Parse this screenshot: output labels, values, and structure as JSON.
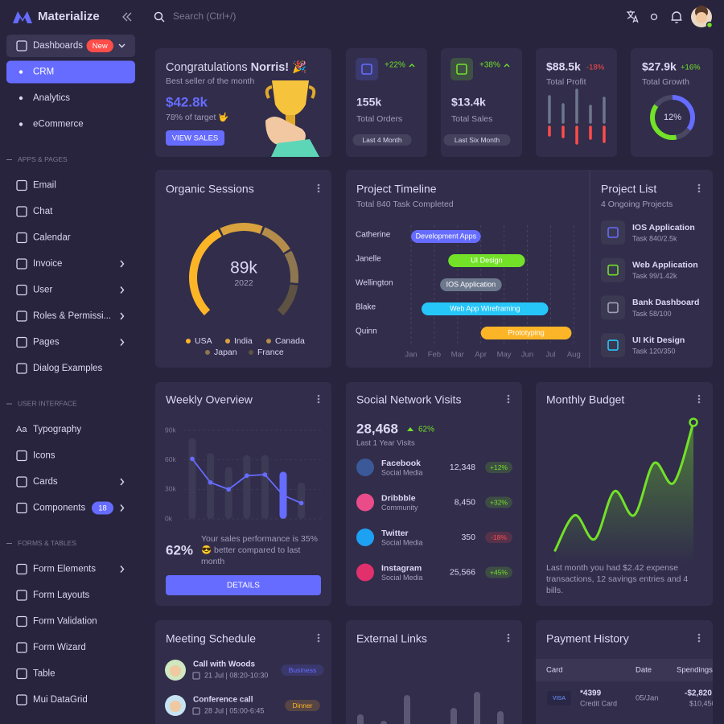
{
  "sidebar": {
    "brand": "Materialize",
    "menu": [
      {
        "label": "Dashboards",
        "badge": "New",
        "badge_color": "#ff4d49",
        "arrow": true,
        "expanded": true
      },
      {
        "label": "CRM",
        "level": 2,
        "active": true
      },
      {
        "label": "Analytics",
        "level": 2
      },
      {
        "label": "eCommerce",
        "level": 2
      },
      {
        "section": "APPS & PAGES"
      },
      {
        "label": "Email"
      },
      {
        "label": "Chat"
      },
      {
        "label": "Calendar"
      },
      {
        "label": "Invoice",
        "arrow": true
      },
      {
        "label": "User",
        "arrow": true
      },
      {
        "label": "Roles & Permissi...",
        "arrow": true
      },
      {
        "label": "Pages",
        "arrow": true
      },
      {
        "label": "Dialog Examples"
      },
      {
        "section": "USER INTERFACE"
      },
      {
        "label": "Typography",
        "icon_text": "Aa"
      },
      {
        "label": "Icons"
      },
      {
        "label": "Cards",
        "arrow": true
      },
      {
        "label": "Components",
        "badge": 18,
        "badge_color": "#666cff",
        "arrow": true
      },
      {
        "section": "FORMS & TABLES"
      },
      {
        "label": "Form Elements",
        "arrow": true
      },
      {
        "label": "Form Layouts"
      },
      {
        "label": "Form Validation"
      },
      {
        "label": "Form Wizard"
      },
      {
        "label": "Table"
      },
      {
        "label": "Mui DataGrid"
      }
    ]
  },
  "topbar": {
    "search_placeholder": "Search (Ctrl+/)"
  },
  "congrats": {
    "title": "Congratulations ",
    "name": "Norris! 🎉",
    "subtitle": "Best seller of the month",
    "amount": "$42.8k",
    "target": "78% of target 🤟",
    "button": "VIEW SALES"
  },
  "stats": [
    {
      "change": "+22%",
      "value": "155k",
      "label": "Total Orders",
      "period": "Last 4 Month",
      "color": "#666cff"
    },
    {
      "change": "+38%",
      "value": "$13.4k",
      "label": "Total Sales",
      "period": "Last Six Month",
      "color": "#72e128"
    }
  ],
  "total_profit": {
    "value": "$88.5k",
    "change": "-18%",
    "label": "Total Profit",
    "chart": {
      "up": [
        32,
        22,
        40,
        20,
        30
      ],
      "down": [
        10,
        12,
        20,
        14,
        18
      ],
      "colors": [
        "#6d788d",
        "#ff4d49"
      ]
    }
  },
  "total_growth": {
    "value": "$27.9k",
    "change": "+16%",
    "label": "Total Growth",
    "chart": {
      "values": [
        35,
        12,
        38,
        15
      ],
      "colors": [
        "#666cff",
        "#4a4763",
        "#72e128",
        "#4a4763"
      ],
      "center": "12%"
    }
  },
  "organic_sessions": {
    "title": "Organic Sessions",
    "center": "89k",
    "year": "2022",
    "series": [
      {
        "name": "USA",
        "value": 40,
        "color": "#fdb528"
      },
      {
        "name": "India",
        "value": 18,
        "color": "#d9a23e"
      },
      {
        "name": "Canada",
        "value": 14,
        "color": "#b58d4b"
      },
      {
        "name": "Japan",
        "value": 14,
        "color": "#8e7650"
      },
      {
        "name": "France",
        "value": 14,
        "color": "#5e5343"
      }
    ]
  },
  "project_timeline": {
    "title": "Project Timeline",
    "subtitle": "Total 840 Task Completed",
    "months": [
      "Jan",
      "Feb",
      "Mar",
      "Apr",
      "May",
      "Jun",
      "Jul",
      "Aug"
    ],
    "tasks": [
      {
        "person": "Catherine",
        "label": "Development Apps",
        "start": 0,
        "end": 3,
        "color": "#666cff"
      },
      {
        "person": "Janelle",
        "label": "UI Design",
        "start": 1.6,
        "end": 4.9,
        "color": "#72e128"
      },
      {
        "person": "Wellington",
        "label": "IOS Application",
        "start": 1.25,
        "end": 3.9,
        "color": "#6d788d"
      },
      {
        "person": "Blake",
        "label": "Web App Wireframing",
        "start": 0.45,
        "end": 5.9,
        "color": "#26c6f9"
      },
      {
        "person": "Quinn",
        "label": "Prototyping",
        "start": 3,
        "end": 6.9,
        "color": "#fdb528"
      }
    ]
  },
  "project_list": {
    "title": "Project List",
    "subtitle": "4 Ongoing Projects",
    "items": [
      {
        "name": "IOS Application",
        "task": "Task 840/2.5k",
        "color": "#666cff"
      },
      {
        "name": "Web Application",
        "task": "Task 99/1.42k",
        "color": "#72e128"
      },
      {
        "name": "Bank Dashboard",
        "task": "Task 58/100",
        "color": "#a29eb9"
      },
      {
        "name": "UI Kit Design",
        "task": "Task 120/350",
        "color": "#26c6f9"
      }
    ]
  },
  "weekly_overview": {
    "title": "Weekly Overview",
    "ylim": [
      0,
      90000
    ],
    "yticks": [
      {
        "value": 0,
        "label": "0k"
      },
      {
        "value": 30000,
        "label": "30k"
      },
      {
        "value": 60000,
        "label": "60k"
      },
      {
        "value": 90000,
        "label": "90k"
      }
    ],
    "bars": [
      82000,
      67000,
      53000,
      65000,
      65000,
      48000,
      37000
    ],
    "highlight": 5,
    "line": [
      61000,
      37000,
      30000,
      44000,
      45000,
      24000,
      16000
    ],
    "bar_color": "#3d3a55",
    "color": "#666cff",
    "percent": "62%",
    "text": "Your sales performance is 35% 😎 better compared to last month",
    "button": "DETAILS"
  },
  "social": {
    "title": "Social Network Visits",
    "total": "28,468",
    "change": "62%",
    "subtitle": "Last 1 Year Visits",
    "items": [
      {
        "name": "Facebook",
        "sub": "Social Media",
        "value": "12,348",
        "change": "+12%"
      },
      {
        "name": "Dribbble",
        "sub": "Community",
        "value": "8,450",
        "change": "+32%"
      },
      {
        "name": "Twitter",
        "sub": "Social Media",
        "value": "350",
        "change": "-18%"
      },
      {
        "name": "Instagram",
        "sub": "Social Media",
        "value": "25,566",
        "change": "+45%"
      }
    ]
  },
  "monthly_budget": {
    "title": "Monthly Budget",
    "values": [
      9,
      34,
      17,
      51,
      34,
      71,
      57,
      100
    ],
    "ylim": [
      0,
      100
    ],
    "color": "#72e128",
    "text": "Last month you had $2.42 expense transactions, 12 savings entries and 4 bills."
  },
  "meeting": {
    "title": "Meeting Schedule",
    "items": [
      {
        "title": "Call with Woods",
        "time": "21 Jul | 08:20-10:30",
        "tag": "Business",
        "color": "#666cff"
      },
      {
        "title": "Conference call",
        "time": "28 Jul | 05:00-6:45",
        "tag": "Dinner",
        "color": "#fdb528"
      }
    ]
  },
  "external_links": {
    "title": "External Links",
    "values": [
      40,
      30,
      70,
      25,
      50,
      75,
      45
    ],
    "ylim": [
      0,
      100
    ]
  },
  "payment_history": {
    "title": "Payment History",
    "headers": [
      "Card",
      "Date",
      "Spendings"
    ],
    "rows": [
      {
        "logo": "VISA",
        "card": "*4399",
        "type": "Credit Card",
        "date": "05/Jan",
        "amount": "-$2,820",
        "balance": "$10,450"
      }
    ]
  }
}
